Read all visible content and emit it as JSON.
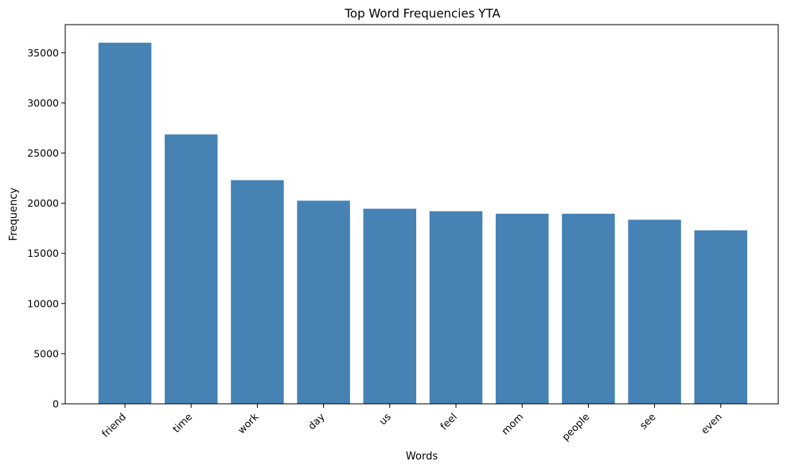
{
  "chart_data": {
    "type": "bar",
    "title": "Top Word Frequencies YTA",
    "xlabel": "Words",
    "ylabel": "Frequency",
    "categories": [
      "friend",
      "time",
      "work",
      "day",
      "us",
      "feel",
      "mom",
      "people",
      "see",
      "even"
    ],
    "values": [
      36000,
      26850,
      22300,
      20250,
      19450,
      19200,
      18950,
      18950,
      18350,
      17300
    ],
    "ylim": [
      0,
      37800
    ],
    "yticks": [
      0,
      5000,
      10000,
      15000,
      20000,
      25000,
      30000,
      35000
    ],
    "grid": false,
    "bar_color": "#4682b4"
  }
}
